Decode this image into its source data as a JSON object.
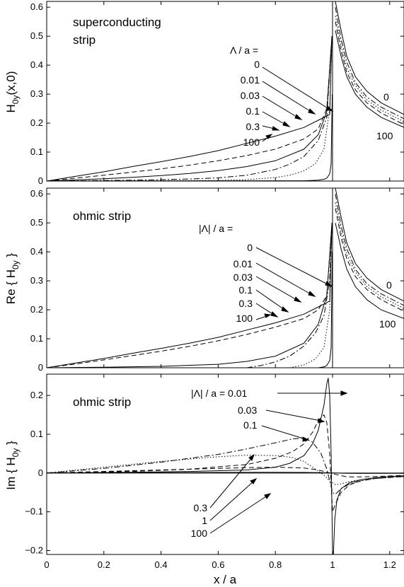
{
  "figure": {
    "xlabel": "x / a",
    "x_ticks": [
      0,
      0.2,
      0.4,
      0.6,
      0.8,
      1,
      1.2
    ],
    "x_tick_labels": [
      "0",
      "0.2",
      "0.4",
      "0.6",
      "0.8",
      "1",
      "1.2"
    ]
  },
  "chart_data": [
    {
      "type": "line",
      "title": "",
      "annotation": [
        "superconducting",
        "strip"
      ],
      "ylabel_main": "H",
      "ylabel_sub": "0y",
      "ylabel_tail": "(x,0)",
      "xlabel": "x / a",
      "xlim": [
        0,
        1.25
      ],
      "ylim": [
        0,
        0.62
      ],
      "y_ticks": [
        0,
        0.1,
        0.2,
        0.3,
        0.4,
        0.5,
        0.6
      ],
      "y_tick_labels": [
        "0",
        "0.1",
        "0.2",
        "0.3",
        "0.4",
        "0.5",
        "0.6"
      ],
      "legend_header": "Λ / a =",
      "series": [
        {
          "name": "0",
          "style": "solid",
          "x": [
            0,
            0.1,
            0.2,
            0.3,
            0.4,
            0.5,
            0.6,
            0.7,
            0.8,
            0.9,
            0.95,
            0.99,
            0.998
          ],
          "y": [
            0.0,
            0.016,
            0.032,
            0.05,
            0.067,
            0.085,
            0.105,
            0.13,
            0.155,
            0.185,
            0.21,
            0.23,
            0.5
          ]
        },
        {
          "name": "0.01",
          "style": "dashed",
          "x": [
            0,
            0.1,
            0.2,
            0.3,
            0.4,
            0.5,
            0.6,
            0.7,
            0.8,
            0.9,
            0.95,
            0.98,
            0.998
          ],
          "y": [
            0.0,
            0.01,
            0.02,
            0.031,
            0.042,
            0.055,
            0.07,
            0.088,
            0.11,
            0.145,
            0.18,
            0.25,
            0.5
          ]
        },
        {
          "name": "0.03",
          "style": "solid",
          "x": [
            0,
            0.1,
            0.2,
            0.3,
            0.4,
            0.5,
            0.6,
            0.7,
            0.8,
            0.9,
            0.95,
            0.98,
            0.998
          ],
          "y": [
            0.0,
            0.004,
            0.008,
            0.013,
            0.019,
            0.026,
            0.036,
            0.05,
            0.07,
            0.11,
            0.16,
            0.24,
            0.5
          ]
        },
        {
          "name": "0.1",
          "style": "dashdot",
          "x": [
            0,
            0.3,
            0.5,
            0.6,
            0.7,
            0.8,
            0.85,
            0.9,
            0.95,
            0.98,
            0.998
          ],
          "y": [
            0.0,
            0.003,
            0.007,
            0.011,
            0.02,
            0.04,
            0.058,
            0.085,
            0.14,
            0.22,
            0.5
          ]
        },
        {
          "name": "0.3",
          "style": "dotted",
          "x": [
            0,
            0.6,
            0.7,
            0.8,
            0.85,
            0.9,
            0.94,
            0.97,
            0.99,
            0.998
          ],
          "y": [
            0.0,
            0.002,
            0.005,
            0.012,
            0.02,
            0.035,
            0.06,
            0.11,
            0.25,
            0.5
          ]
        },
        {
          "name": "100",
          "style": "solid",
          "x": [
            0,
            0.9,
            0.95,
            0.97,
            0.98,
            0.99,
            0.995,
            0.999
          ],
          "y": [
            0.0,
            0.001,
            0.003,
            0.006,
            0.01,
            0.025,
            0.06,
            0.3
          ]
        }
      ],
      "outer_series": [
        {
          "name": "0",
          "style": "solid",
          "x": [
            1.01,
            1.03,
            1.05,
            1.08,
            1.12,
            1.17,
            1.25
          ],
          "y": [
            0.62,
            0.52,
            0.43,
            0.36,
            0.31,
            0.27,
            0.23
          ]
        },
        {
          "style": "dashdot",
          "x": [
            1.01,
            1.03,
            1.05,
            1.08,
            1.12,
            1.17,
            1.25
          ],
          "y": [
            0.6,
            0.49,
            0.41,
            0.34,
            0.29,
            0.255,
            0.215
          ]
        },
        {
          "style": "dotted",
          "x": [
            1.01,
            1.03,
            1.05,
            1.08,
            1.12,
            1.17,
            1.25
          ],
          "y": [
            0.57,
            0.47,
            0.39,
            0.33,
            0.28,
            0.245,
            0.205
          ]
        },
        {
          "style": "dashed",
          "x": [
            1.01,
            1.03,
            1.05,
            1.08,
            1.12,
            1.17,
            1.25
          ],
          "y": [
            0.55,
            0.45,
            0.375,
            0.315,
            0.27,
            0.235,
            0.195
          ]
        },
        {
          "name": "100",
          "style": "solid",
          "x": [
            1.01,
            1.03,
            1.05,
            1.08,
            1.12,
            1.17,
            1.25
          ],
          "y": [
            0.52,
            0.43,
            0.36,
            0.3,
            0.255,
            0.22,
            0.185
          ]
        }
      ]
    },
    {
      "type": "line",
      "title": "",
      "annotation": [
        "ohmic strip"
      ],
      "ylabel_main": "Re { H",
      "ylabel_sub": "0y",
      "ylabel_tail": " }",
      "xlabel": "x / a",
      "xlim": [
        0,
        1.25
      ],
      "ylim": [
        0,
        0.62
      ],
      "y_ticks": [
        0,
        0.1,
        0.2,
        0.3,
        0.4,
        0.5,
        0.6
      ],
      "y_tick_labels": [
        "0",
        "0.1",
        "0.2",
        "0.3",
        "0.4",
        "0.5",
        "0.6"
      ],
      "legend_header": "|Λ| / a =",
      "series": [
        {
          "name": "0",
          "style": "solid",
          "x": [
            0,
            0.1,
            0.2,
            0.3,
            0.4,
            0.5,
            0.6,
            0.7,
            0.8,
            0.9,
            0.95,
            0.99,
            0.998
          ],
          "y": [
            0.0,
            0.016,
            0.032,
            0.05,
            0.067,
            0.085,
            0.105,
            0.13,
            0.155,
            0.185,
            0.21,
            0.23,
            0.5
          ]
        },
        {
          "name": "0.01",
          "style": "dashed",
          "x": [
            0,
            0.1,
            0.2,
            0.3,
            0.4,
            0.5,
            0.6,
            0.7,
            0.8,
            0.9,
            0.95,
            0.98,
            0.998
          ],
          "y": [
            0.0,
            0.013,
            0.027,
            0.042,
            0.057,
            0.074,
            0.093,
            0.115,
            0.14,
            0.17,
            0.2,
            0.25,
            0.5
          ]
        },
        {
          "name": "0.03",
          "style": "solid",
          "x": [
            0,
            0.2,
            0.4,
            0.6,
            0.7,
            0.8,
            0.9,
            0.95,
            0.98,
            0.998
          ],
          "y": [
            0.0,
            0.002,
            0.005,
            0.012,
            0.022,
            0.04,
            0.085,
            0.15,
            0.25,
            0.5
          ]
        },
        {
          "name": "0.1",
          "style": "dashdot",
          "x": [
            0.7,
            0.75,
            0.8,
            0.85,
            0.9,
            0.94,
            0.97,
            0.99,
            0.998
          ],
          "y": [
            0.0,
            0.008,
            0.02,
            0.04,
            0.075,
            0.12,
            0.18,
            0.3,
            0.5
          ]
        },
        {
          "name": "0.3",
          "style": "dotted",
          "x": [
            0.85,
            0.9,
            0.94,
            0.97,
            0.99,
            0.998
          ],
          "y": [
            0.0,
            0.01,
            0.03,
            0.07,
            0.2,
            0.5
          ]
        },
        {
          "name": "100",
          "style": "solid",
          "x": [
            0.95,
            0.97,
            0.98,
            0.99,
            0.995,
            0.999
          ],
          "y": [
            0.0,
            0.003,
            0.008,
            0.025,
            0.07,
            0.4
          ]
        }
      ],
      "outer_series": [
        {
          "name": "0",
          "style": "solid",
          "x": [
            1.01,
            1.03,
            1.05,
            1.08,
            1.12,
            1.17,
            1.25
          ],
          "y": [
            0.62,
            0.52,
            0.43,
            0.36,
            0.31,
            0.27,
            0.23
          ]
        },
        {
          "style": "dashdot",
          "x": [
            1.01,
            1.03,
            1.05,
            1.08,
            1.12,
            1.17,
            1.25
          ],
          "y": [
            0.6,
            0.49,
            0.41,
            0.34,
            0.29,
            0.255,
            0.215
          ]
        },
        {
          "style": "dotted",
          "x": [
            1.01,
            1.03,
            1.05,
            1.08,
            1.12,
            1.17,
            1.25
          ],
          "y": [
            0.57,
            0.47,
            0.39,
            0.33,
            0.28,
            0.245,
            0.205
          ]
        },
        {
          "style": "dashed",
          "x": [
            1.01,
            1.03,
            1.05,
            1.08,
            1.12,
            1.17,
            1.25
          ],
          "y": [
            0.55,
            0.45,
            0.375,
            0.315,
            0.27,
            0.235,
            0.195
          ]
        },
        {
          "name": "100",
          "style": "solid",
          "x": [
            1.01,
            1.03,
            1.05,
            1.08,
            1.12,
            1.17,
            1.25
          ],
          "y": [
            0.5,
            0.41,
            0.34,
            0.28,
            0.235,
            0.2,
            0.17
          ]
        }
      ]
    },
    {
      "type": "line",
      "title": "",
      "annotation": [
        "ohmic strip"
      ],
      "ylabel_main": "Im { H",
      "ylabel_sub": "0y",
      "ylabel_tail": " }",
      "xlabel": "x / a",
      "xlim": [
        0,
        1.25
      ],
      "ylim": [
        -0.21,
        0.255
      ],
      "y_ticks": [
        -0.2,
        -0.1,
        0,
        0.1,
        0.2
      ],
      "y_tick_labels": [
        "−0.2",
        "−0.1",
        "0",
        "0.1",
        "0.2"
      ],
      "legend_header": "|Λ| / a =",
      "series": [
        {
          "name": "0.01",
          "style": "solid",
          "x": [
            0,
            0.3,
            0.5,
            0.7,
            0.8,
            0.85,
            0.9,
            0.93,
            0.95,
            0.97,
            0.98,
            0.985,
            0.99,
            0.995,
            1.0,
            1.003,
            1.008,
            1.015,
            1.03,
            1.06,
            1.1,
            1.15,
            1.2,
            1.25
          ],
          "y": [
            0.0,
            0.002,
            0.004,
            0.008,
            0.015,
            0.025,
            0.045,
            0.075,
            0.11,
            0.175,
            0.23,
            0.245,
            0.2,
            0.05,
            -0.2,
            -0.21,
            -0.12,
            -0.07,
            -0.04,
            -0.025,
            -0.017,
            -0.012,
            -0.009,
            -0.007
          ]
        },
        {
          "name": "0.03",
          "style": "dashed",
          "x": [
            0,
            0.3,
            0.5,
            0.7,
            0.8,
            0.86,
            0.9,
            0.93,
            0.95,
            0.97,
            0.98,
            0.99,
            1.0,
            1.01,
            1.03,
            1.06,
            1.1,
            1.15,
            1.25
          ],
          "y": [
            0.0,
            0.004,
            0.01,
            0.022,
            0.038,
            0.055,
            0.075,
            0.105,
            0.135,
            0.15,
            0.13,
            0.05,
            -0.1,
            -0.08,
            -0.05,
            -0.03,
            -0.02,
            -0.014,
            -0.009
          ]
        },
        {
          "name": "0.1",
          "style": "dashdot",
          "x": [
            0,
            0.2,
            0.4,
            0.6,
            0.7,
            0.8,
            0.86,
            0.9,
            0.93,
            0.96,
            0.98,
            0.99,
            1.0,
            1.01,
            1.03,
            1.06,
            1.1,
            1.15,
            1.25
          ],
          "y": [
            0.0,
            0.012,
            0.028,
            0.048,
            0.062,
            0.078,
            0.088,
            0.09,
            0.08,
            0.05,
            0.01,
            -0.02,
            -0.05,
            -0.055,
            -0.04,
            -0.028,
            -0.02,
            -0.014,
            -0.009
          ]
        },
        {
          "name": "0.3",
          "style": "dotted",
          "x": [
            0,
            0.2,
            0.4,
            0.6,
            0.7,
            0.8,
            0.86,
            0.9,
            0.94,
            0.97,
            0.99,
            1.0,
            1.01,
            1.03,
            1.06,
            1.1,
            1.15,
            1.25
          ],
          "y": [
            0.0,
            0.015,
            0.03,
            0.042,
            0.046,
            0.045,
            0.04,
            0.03,
            0.01,
            -0.005,
            -0.02,
            -0.025,
            -0.03,
            -0.028,
            -0.022,
            -0.017,
            -0.012,
            -0.008
          ]
        },
        {
          "name": "1",
          "style": "dashed",
          "x": [
            0,
            0.2,
            0.4,
            0.6,
            0.7,
            0.8,
            0.9,
            0.95,
            1.0,
            1.05,
            1.1,
            1.15,
            1.25
          ],
          "y": [
            0.0,
            0.004,
            0.008,
            0.012,
            0.014,
            0.015,
            0.013,
            0.008,
            -0.002,
            -0.01,
            -0.01,
            -0.009,
            -0.006
          ]
        },
        {
          "name": "100",
          "style": "solid",
          "x": [
            0,
            0.2,
            0.4,
            0.6,
            0.7,
            0.8,
            0.9,
            0.95,
            1.0,
            1.05,
            1.1,
            1.25
          ],
          "y": [
            0.0,
            0.0005,
            0.001,
            0.0015,
            0.0017,
            0.0018,
            0.0015,
            0.001,
            0.0,
            -0.0008,
            -0.001,
            -0.0008
          ]
        }
      ],
      "outer_series": []
    }
  ],
  "panel_text": [
    {
      "header": "Λ / a =",
      "labels": [
        "0",
        "0.01",
        "0.03",
        "0.1",
        "0.3",
        "100"
      ],
      "right_labels": [
        "0",
        "100"
      ]
    },
    {
      "header": "|Λ| / a =",
      "labels": [
        "0",
        "0.01",
        "0.03",
        "0.1",
        "0.3",
        "100"
      ],
      "right_labels": [
        "0",
        "100"
      ]
    },
    {
      "header": "|Λ| / a = 0.01",
      "labels_top": [
        "0.03",
        "0.1"
      ],
      "labels_bottom": [
        "0.3",
        "1",
        "100"
      ]
    }
  ]
}
